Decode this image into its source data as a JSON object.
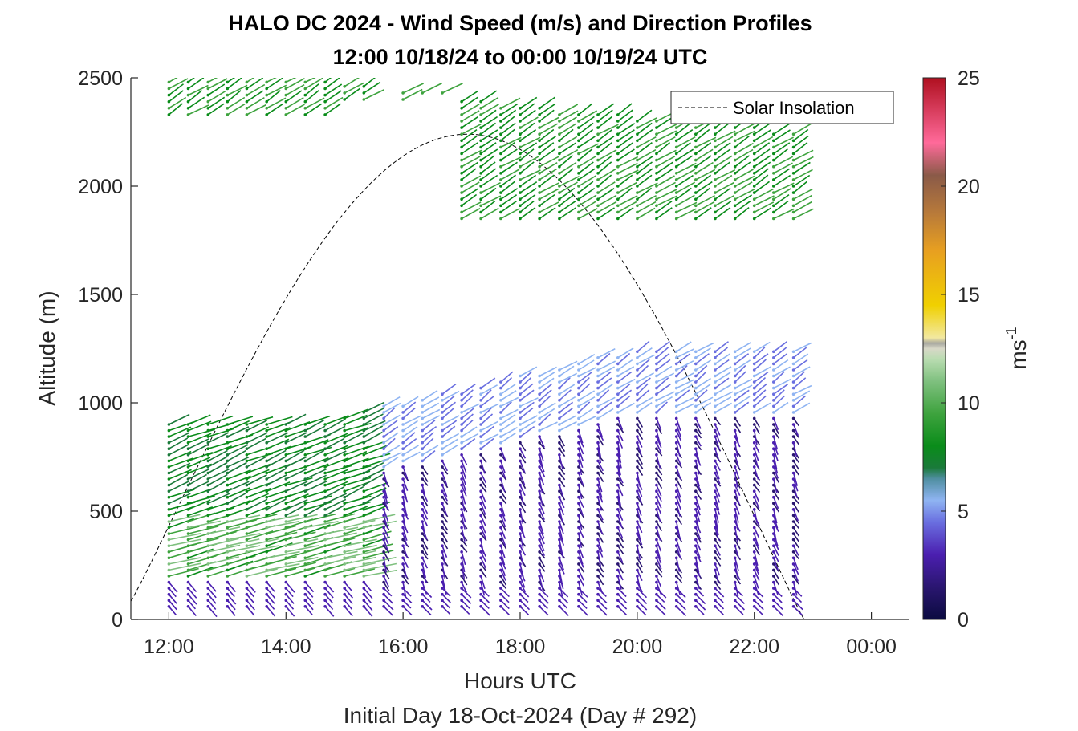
{
  "chart_data": {
    "type": "quiver-profile",
    "title_line1": "HALO DC 2024 - Wind Speed (m/s) and Direction Profiles",
    "title_line2": "12:00 10/18/24 to 00:00 10/19/24  UTC",
    "xlabel": "Hours UTC",
    "xlabel2": "Initial Day 18-Oct-2024 (Day # 292)",
    "ylabel": "Altitude (m)",
    "xlim": [
      11.35,
      24.65
    ],
    "ylim": [
      0,
      2500
    ],
    "x_ticks": [
      12,
      14,
      16,
      18,
      20,
      22,
      24
    ],
    "x_tick_labels": [
      "12:00",
      "14:00",
      "16:00",
      "18:00",
      "20:00",
      "22:00",
      "00:00"
    ],
    "y_ticks": [
      0,
      500,
      1000,
      1500,
      2000,
      2500
    ],
    "y_tick_labels": [
      "0",
      "500",
      "1000",
      "1500",
      "2000",
      "2500"
    ],
    "colorbar": {
      "label": "ms",
      "label_exponent": "-1",
      "range": [
        0,
        25
      ],
      "ticks": [
        0,
        5,
        10,
        15,
        20,
        25
      ],
      "tick_labels": [
        "0",
        "5",
        "10",
        "15",
        "20",
        "25"
      ]
    },
    "legend": {
      "entries": [
        "Solar Insolation"
      ],
      "placement": "top-right"
    },
    "solar_insolation": {
      "start_hour": 11.35,
      "peak_hour": 16.95,
      "peak_altitude": 2240,
      "end_hour": 22.85,
      "line_style": "dashed"
    },
    "profile_hours": [
      12.0,
      12.33,
      12.67,
      13.0,
      13.33,
      13.67,
      14.0,
      14.33,
      14.67,
      15.0,
      15.33,
      15.67,
      16.0,
      16.33,
      16.67,
      17.0,
      17.33,
      17.67,
      18.0,
      18.33,
      18.67,
      19.0,
      19.33,
      19.67,
      20.0,
      20.33,
      20.67,
      21.0,
      21.33,
      21.67,
      22.0,
      22.33,
      22.67
    ],
    "segments": [
      {
        "z_from": 60,
        "z_to": 250,
        "speed": 3.5,
        "direction_deg": 320
      },
      {
        "z_from": 250,
        "z_to": 500,
        "speed": 10.5,
        "direction_deg": 245
      },
      {
        "z_from": 500,
        "z_to": 900,
        "speed": 8.0,
        "direction_deg": 245
      }
    ]
  }
}
